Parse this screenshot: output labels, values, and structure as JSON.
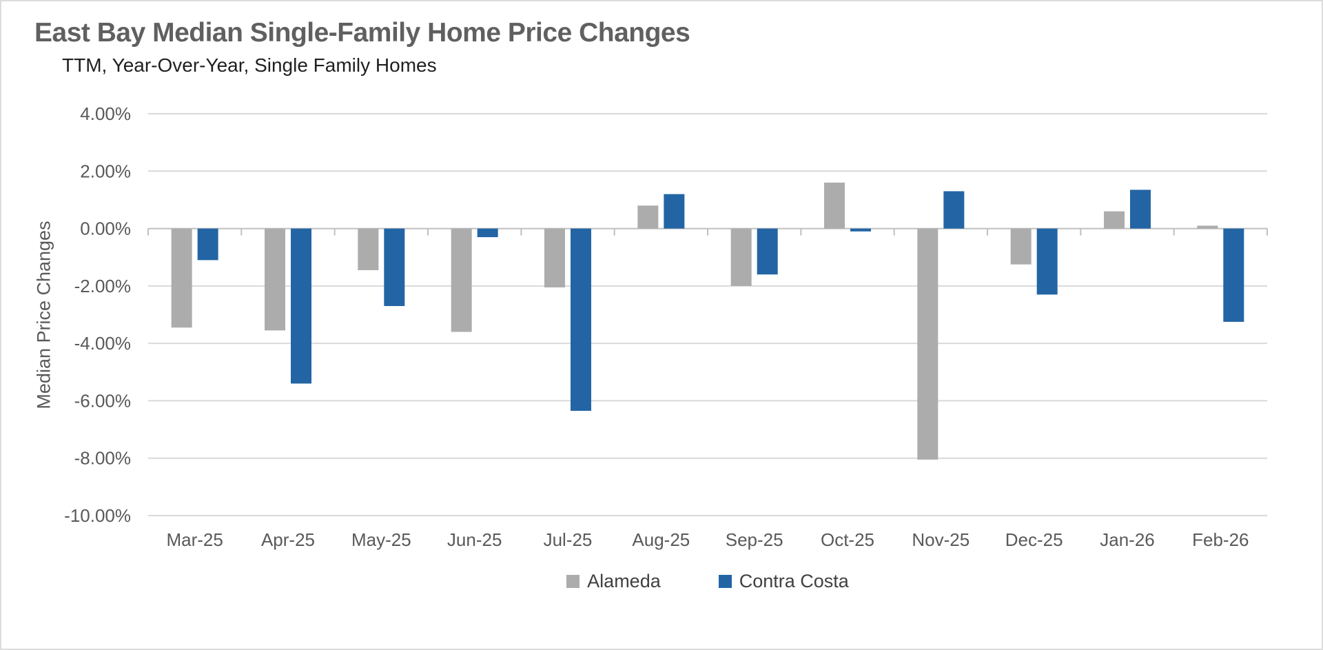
{
  "chart_data": {
    "type": "bar",
    "title": "East Bay Median Single-Family Home Price Changes",
    "subtitle": "TTM, Year-Over-Year, Single Family Homes",
    "ylabel": "Median Price Changes",
    "xlabel": "",
    "categories": [
      "Mar-25",
      "Apr-25",
      "May-25",
      "Jun-25",
      "Jul-25",
      "Aug-25",
      "Sep-25",
      "Oct-25",
      "Nov-25",
      "Dec-25",
      "Jan-26",
      "Feb-26"
    ],
    "series": [
      {
        "name": "Alameda",
        "color": "#ACACAC",
        "values": [
          -3.45,
          -3.55,
          -1.45,
          -3.6,
          -2.05,
          0.8,
          -2.0,
          1.6,
          -8.05,
          -1.25,
          0.6,
          0.1
        ]
      },
      {
        "name": "Contra Costa",
        "color": "#2365A4",
        "values": [
          -1.1,
          -5.4,
          -2.7,
          -0.3,
          -6.35,
          1.2,
          -1.6,
          -0.1,
          1.3,
          -2.3,
          1.35,
          -3.25
        ]
      }
    ],
    "ylim": [
      -10,
      4
    ],
    "y_ticks": [
      {
        "value": 4,
        "label": "4.00%"
      },
      {
        "value": 2,
        "label": "2.00%"
      },
      {
        "value": 0,
        "label": "0.00%"
      },
      {
        "value": -2,
        "label": "-2.00%"
      },
      {
        "value": -4,
        "label": "-4.00%"
      },
      {
        "value": -6,
        "label": "-6.00%"
      },
      {
        "value": -8,
        "label": "-8.00%"
      },
      {
        "value": -10,
        "label": "-10.00%"
      }
    ],
    "grid": true,
    "legend_position": "bottom",
    "colors": {
      "gridline": "#D9D9D9",
      "axis_line": "#BFBFBF",
      "axis_text": "#595959",
      "legend_text": "#404040",
      "title_text": "#606060",
      "subtitle_text": "#1F1F1F"
    }
  }
}
